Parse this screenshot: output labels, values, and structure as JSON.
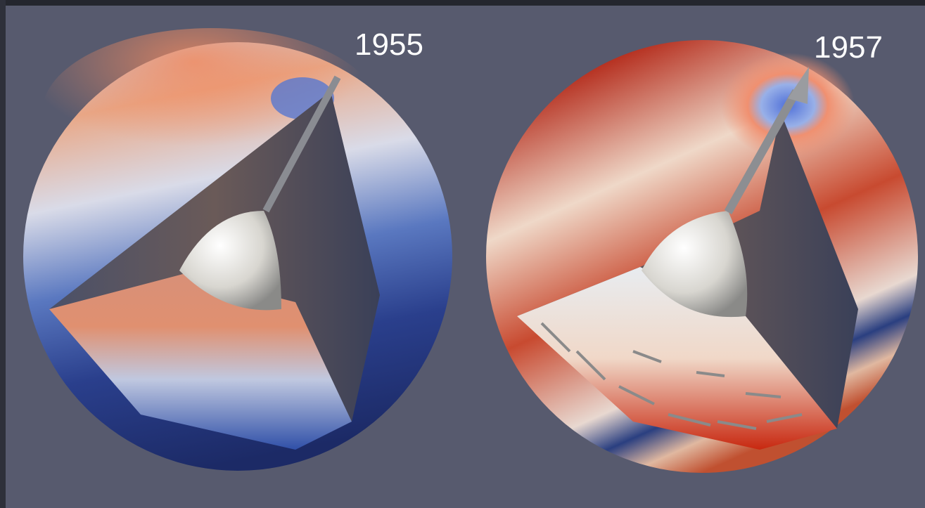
{
  "panels": [
    {
      "label": "1955"
    },
    {
      "label": "1957"
    }
  ]
}
